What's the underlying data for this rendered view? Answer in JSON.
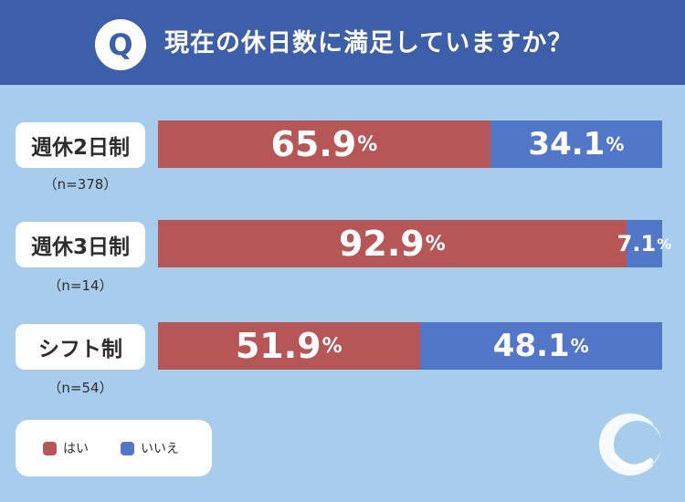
{
  "header": {
    "q_mark": "Q",
    "question": "現在の休日数に満足していますか？"
  },
  "colors": {
    "yes": "#b75656",
    "no": "#5276c8",
    "background": "#a8ccec",
    "header": "#3d5ea8"
  },
  "legend": [
    {
      "label": "はい",
      "color": "#b75656"
    },
    {
      "label": "いいえ",
      "color": "#5276c8"
    }
  ],
  "chart_data": {
    "type": "bar",
    "orientation": "horizontal",
    "stacked": true,
    "percent_stacked": true,
    "categories": [
      "週休2日制",
      "週休3日制",
      "シフト制"
    ],
    "sample_sizes": [
      "（n=378）",
      "（n=14）",
      "（n=54）"
    ],
    "series": [
      {
        "name": "はい",
        "values": [
          65.9,
          92.9,
          51.9
        ]
      },
      {
        "name": "いいえ",
        "values": [
          34.1,
          7.1,
          48.1
        ]
      }
    ],
    "value_labels": [
      [
        "65.9",
        "34.1"
      ],
      [
        "92.9",
        "7.1"
      ],
      [
        "51.9",
        "48.1"
      ]
    ],
    "unit": "%",
    "legend_position": "bottom-left",
    "title": "現在の休日数に満足していますか？"
  }
}
